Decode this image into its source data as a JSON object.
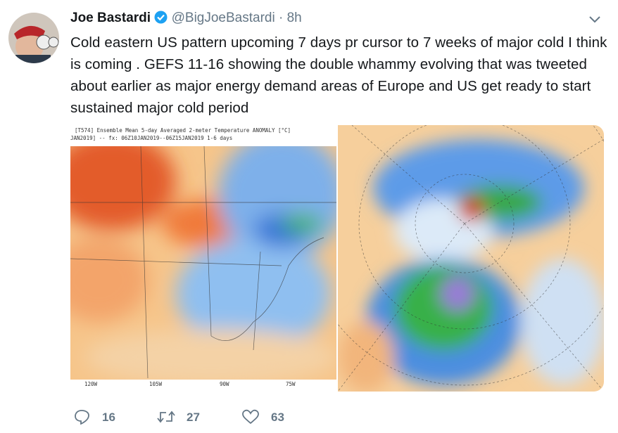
{
  "tweet": {
    "author": {
      "name": "Joe Bastardi",
      "handle": "@BigJoeBastardi",
      "separator": "·",
      "time": "8h"
    },
    "text": "Cold eastern US pattern upcoming 7 days pr cursor to 7 weeks of major cold I think is coming . GEFS  11-16 showing the double whammy evolving that was tweeted about earlier as major energy demand areas of Europe and US get ready to start sustained major cold period",
    "media": {
      "map1": {
        "title": "[T574] Ensemble Mean 5-day Averaged 2-meter Temperature ANOMALY [°C]",
        "subtitle": "JAN2019] -- fx: 06Z10JAN2019--06Z15JAN2019      1-6 days",
        "longitudes": [
          "120W",
          "105W",
          "90W",
          "75W"
        ]
      }
    },
    "actions": {
      "replies": 16,
      "retweets": 27,
      "likes": 63
    }
  }
}
